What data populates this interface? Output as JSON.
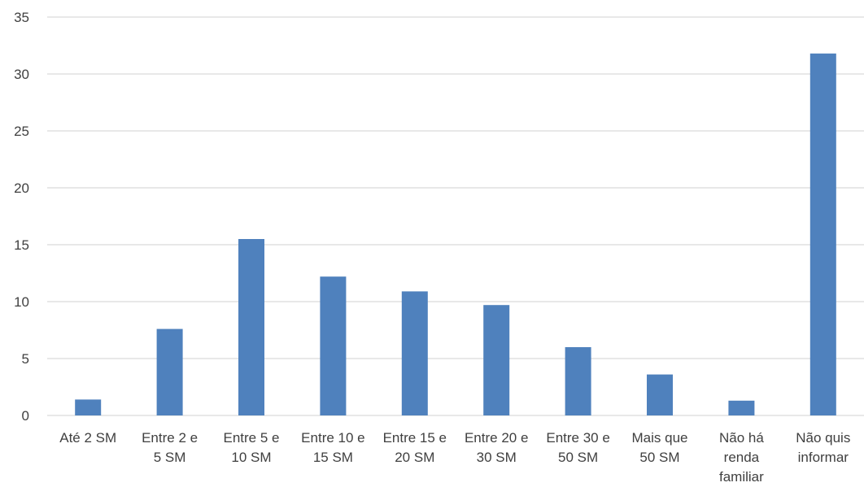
{
  "chart_data": {
    "type": "bar",
    "categories": [
      "Até 2 SM",
      "Entre 2 e 5 SM",
      "Entre 5 e 10 SM",
      "Entre 10 e 15 SM",
      "Entre 15 e 20 SM",
      "Entre 20 e 30 SM",
      "Entre 30 e 50 SM",
      "Mais que 50 SM",
      "Não há renda familiar",
      "Não quis informar"
    ],
    "category_lines": [
      [
        "Até 2 SM"
      ],
      [
        "Entre 2 e",
        "5 SM"
      ],
      [
        "Entre 5 e",
        "10 SM"
      ],
      [
        "Entre 10 e",
        "15 SM"
      ],
      [
        "Entre 15 e",
        "20 SM"
      ],
      [
        "Entre 20 e",
        "30 SM"
      ],
      [
        "Entre 30 e",
        "50 SM"
      ],
      [
        "Mais que",
        "50 SM"
      ],
      [
        "Não há",
        "renda",
        "familiar"
      ],
      [
        "Não quis",
        "informar"
      ]
    ],
    "values": [
      1.4,
      7.6,
      15.5,
      12.2,
      10.9,
      9.7,
      6.0,
      3.6,
      1.3,
      31.8
    ],
    "yticks": [
      0,
      5,
      10,
      15,
      20,
      25,
      30,
      35
    ],
    "ylim": [
      0,
      35
    ],
    "grid": true,
    "legend": "none",
    "bar_color": "#4F81BD",
    "grid_color": "#D9D9D9",
    "text_color": "#404040"
  }
}
